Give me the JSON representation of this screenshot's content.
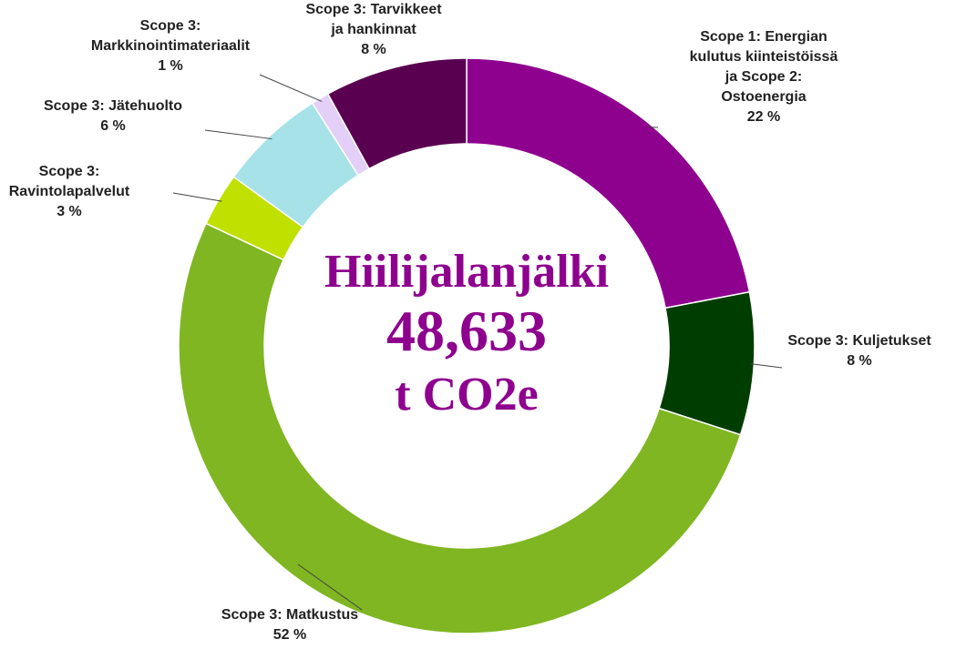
{
  "chart_data": {
    "type": "donut",
    "categories": [
      "Scope 1: Energian\nkulutus kiinteistöissä\nja Scope 2:\nOstoenergia",
      "Scope 3: Kuljetukset",
      "Scope 3: Matkustus",
      "Scope 3:\nRavintolapalvelut",
      "Scope 3: Jätehuolto",
      "Scope 3:\nMarkkinointimateriaalit",
      "Scope 3: Tarvikkeet\nja hankinnat"
    ],
    "values": [
      22,
      8,
      52,
      3,
      6,
      1,
      8
    ],
    "value_labels": [
      "22 %",
      "8 %",
      "52 %",
      "3 %",
      "6 %",
      "1 %",
      "8 %"
    ],
    "colors": [
      "#8e008e",
      "#003d00",
      "#7fb622",
      "#c0e000",
      "#a6e2e8",
      "#e3cff7",
      "#5a0050"
    ],
    "center_labels": [
      "Hiilijalanjälki",
      "48,633",
      "t CO2e"
    ]
  }
}
